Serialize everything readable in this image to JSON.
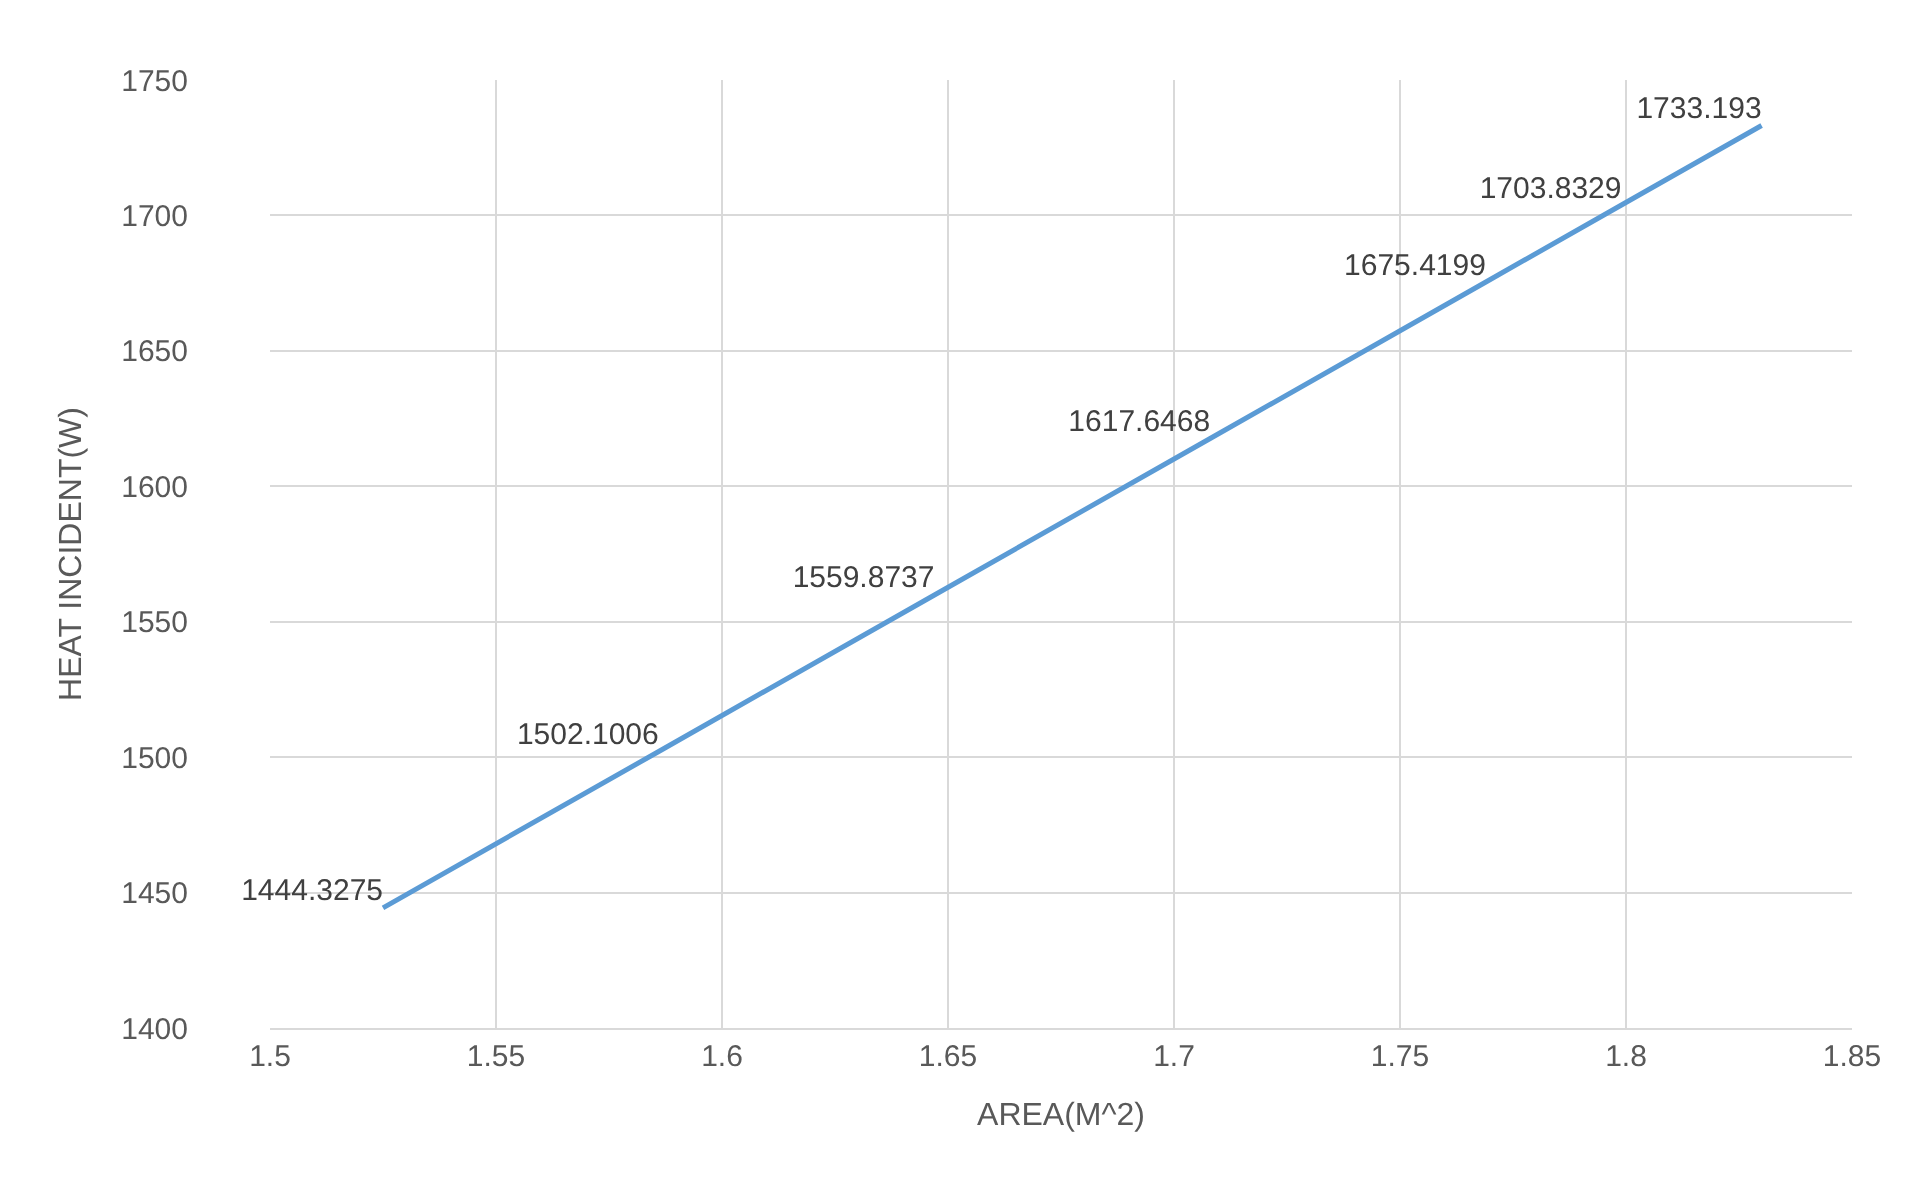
{
  "chart_data": {
    "type": "line",
    "xlabel": "AREA(M^2)",
    "ylabel": "HEAT INCIDENT(W)",
    "x": [
      1.525,
      1.586,
      1.647,
      1.708,
      1.769,
      1.799,
      1.83
    ],
    "series": [
      {
        "color": "#5b9bd5",
        "values": [
          1444.3275,
          1502.1006,
          1559.8737,
          1617.6468,
          1675.4199,
          1703.8329,
          1733.193
        ]
      }
    ],
    "xlim": [
      1.5,
      1.85
    ],
    "xticks": [
      1.5,
      1.55,
      1.6,
      1.65,
      1.7,
      1.75,
      1.8,
      1.85
    ],
    "ylim": [
      1400,
      1750
    ],
    "yticks": [
      1400,
      1450,
      1500,
      1550,
      1600,
      1650,
      1700,
      1750
    ],
    "grid": true,
    "marker": "none",
    "line_style": "solid",
    "data_labels": true
  }
}
